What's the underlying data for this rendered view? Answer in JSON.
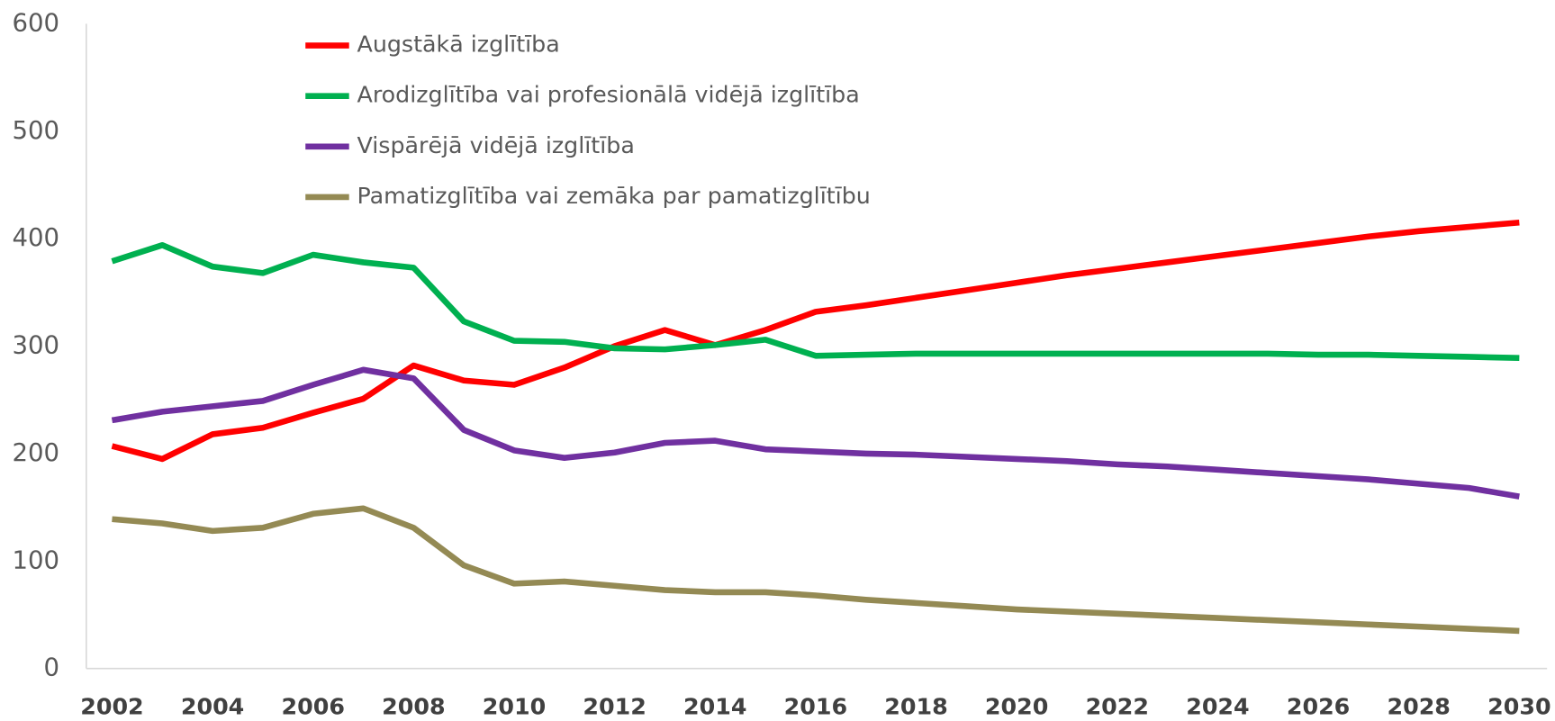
{
  "chart_data": {
    "type": "line",
    "x": [
      2002,
      2003,
      2004,
      2005,
      2006,
      2007,
      2008,
      2009,
      2010,
      2011,
      2012,
      2013,
      2014,
      2015,
      2016,
      2017,
      2018,
      2019,
      2020,
      2021,
      2022,
      2023,
      2024,
      2025,
      2026,
      2027,
      2028,
      2029,
      2030
    ],
    "series": [
      {
        "name": "Augstākā izglītība",
        "color": "#ff0000",
        "values": [
          207,
          195,
          218,
          224,
          238,
          251,
          282,
          268,
          264,
          280,
          300,
          315,
          301,
          315,
          332,
          338,
          345,
          352,
          359,
          366,
          372,
          378,
          384,
          390,
          396,
          402,
          407,
          411,
          415
        ]
      },
      {
        "name": "Arodizglītība vai profesionālā vidējā izglītība",
        "color": "#00b050",
        "values": [
          379,
          394,
          374,
          368,
          385,
          378,
          373,
          323,
          305,
          304,
          298,
          297,
          301,
          306,
          291,
          292,
          293,
          293,
          293,
          293,
          293,
          293,
          293,
          293,
          292,
          292,
          291,
          290,
          289
        ]
      },
      {
        "name": "Vispārējā vidējā izglītība",
        "color": "#7030a0",
        "values": [
          231,
          239,
          244,
          249,
          264,
          278,
          270,
          222,
          203,
          196,
          201,
          210,
          212,
          204,
          202,
          200,
          199,
          197,
          195,
          193,
          190,
          188,
          185,
          182,
          179,
          176,
          172,
          168,
          160
        ]
      },
      {
        "name": "Pamatizglītība vai zemāka par pamatizglītību",
        "color": "#948a54",
        "values": [
          139,
          135,
          128,
          131,
          144,
          149,
          131,
          96,
          79,
          81,
          77,
          73,
          71,
          71,
          68,
          64,
          61,
          58,
          55,
          53,
          51,
          49,
          47,
          45,
          43,
          41,
          39,
          37,
          35
        ]
      }
    ],
    "xlim": [
      2002,
      2030
    ],
    "xticks": [
      2002,
      2004,
      2006,
      2008,
      2010,
      2012,
      2014,
      2016,
      2018,
      2020,
      2022,
      2024,
      2026,
      2028,
      2030
    ],
    "ylim": [
      0,
      600
    ],
    "yticks": [
      0,
      100,
      200,
      300,
      400,
      500,
      600
    ],
    "grid": false,
    "legend": "top"
  }
}
